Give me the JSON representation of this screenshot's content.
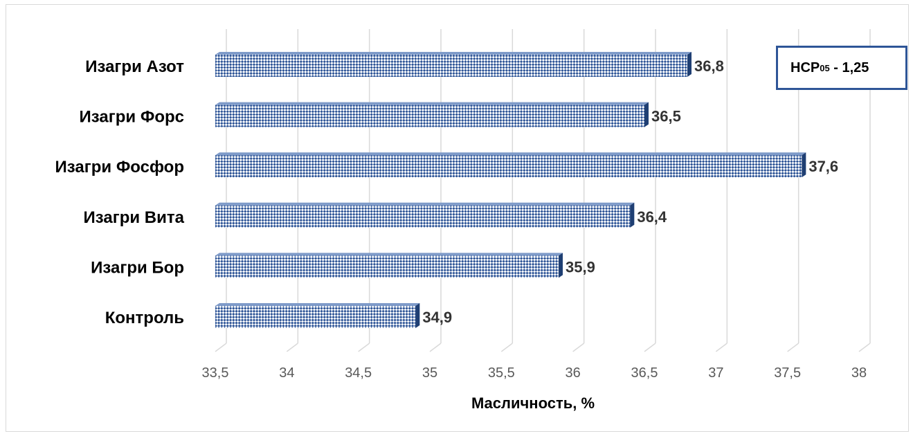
{
  "chart_data": {
    "type": "bar",
    "orientation": "horizontal",
    "categories": [
      "Изагри Азот",
      "Изагри Форс",
      "Изагри Фосфор",
      "Изагри Вита",
      "Изагри Бор",
      "Контроль"
    ],
    "values": [
      36.8,
      36.5,
      37.6,
      36.4,
      35.9,
      34.9
    ],
    "value_labels": [
      "36,8",
      "36,5",
      "37,6",
      "36,4",
      "35,9",
      "34,9"
    ],
    "xlabel": "Масличность,  %",
    "xlim": [
      33.5,
      38
    ],
    "ticks": [
      33.5,
      34,
      34.5,
      35,
      35.5,
      36,
      36.5,
      37,
      37.5,
      38
    ],
    "tick_labels": [
      "33,5",
      "34",
      "34,5",
      "35",
      "35,5",
      "36",
      "36,5",
      "37",
      "37,5",
      "38"
    ],
    "grid": true,
    "bar_color": "#2e5597",
    "annotation": {
      "prefix": "НСР",
      "subscript": "05",
      "suffix": " - 1,25"
    }
  }
}
